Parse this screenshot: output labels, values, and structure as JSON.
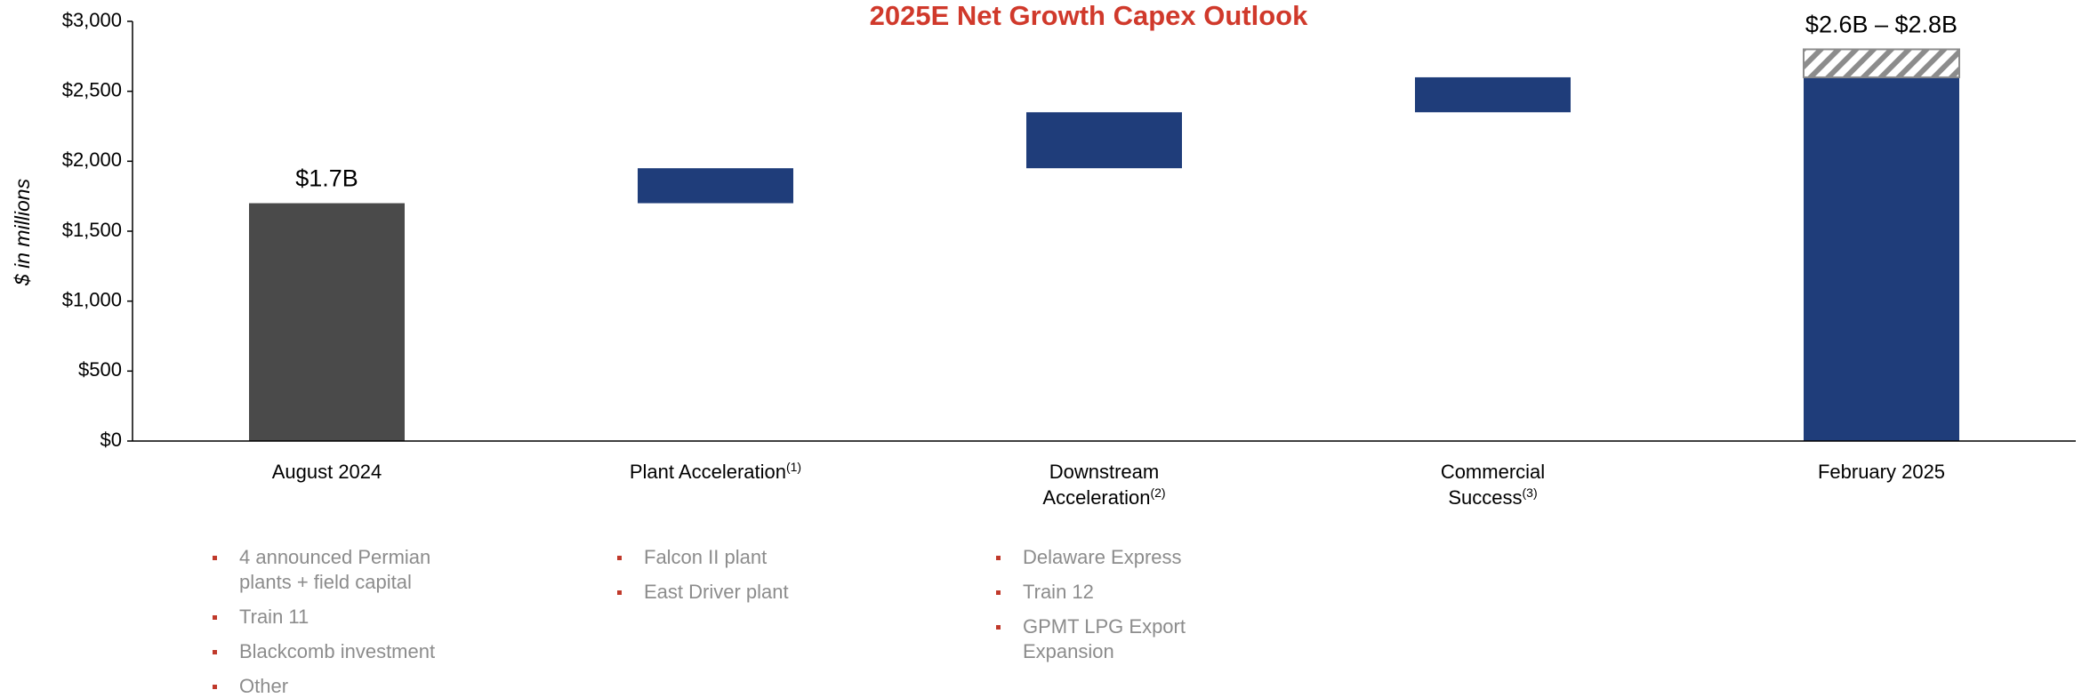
{
  "chart_data": {
    "type": "waterfall",
    "title": "2025E Net Growth Capex Outlook",
    "y_label": "$ in millions",
    "categories": [
      "August 2024",
      "Plant Acceleration",
      "Downstream Acceleration",
      "Commercial Success",
      "February 2025"
    ],
    "category_notes": [
      null,
      "(1)",
      "(2)",
      "(3)",
      null
    ],
    "measure": [
      "absolute",
      "relative",
      "relative",
      "relative",
      "absolute"
    ],
    "values": [
      1700,
      250,
      400,
      250,
      2600
    ],
    "colors": [
      "#4a4a4a",
      "#1f3d7a",
      "#1f3d7a",
      "#1f3d7a",
      "#1f3d7a"
    ],
    "range_values": [
      null,
      null,
      null,
      null,
      200
    ],
    "range_color": "#8c8c8c",
    "value_labels": [
      "$1.7B",
      null,
      null,
      null,
      "$2.6B – $2.8B"
    ],
    "ylim": [
      0,
      3000
    ],
    "yticks": [
      {
        "value": 0,
        "label": "$0"
      },
      {
        "value": 500,
        "label": "$500"
      },
      {
        "value": 1000,
        "label": "$1,000"
      },
      {
        "value": 1500,
        "label": "$1,500"
      },
      {
        "value": 2000,
        "label": "$2,000"
      },
      {
        "value": 2500,
        "label": "$2,500"
      },
      {
        "value": 3000,
        "label": "$3,000"
      }
    ],
    "bullets": [
      [
        "4 announced Permian plants + field capital",
        "Train 11",
        "Blackcomb investment",
        "Other"
      ],
      [
        "Falcon II plant",
        "East Driver plant"
      ],
      [
        "Delaware Express",
        "Train 12",
        "GPMT LPG Export Expansion"
      ]
    ]
  }
}
